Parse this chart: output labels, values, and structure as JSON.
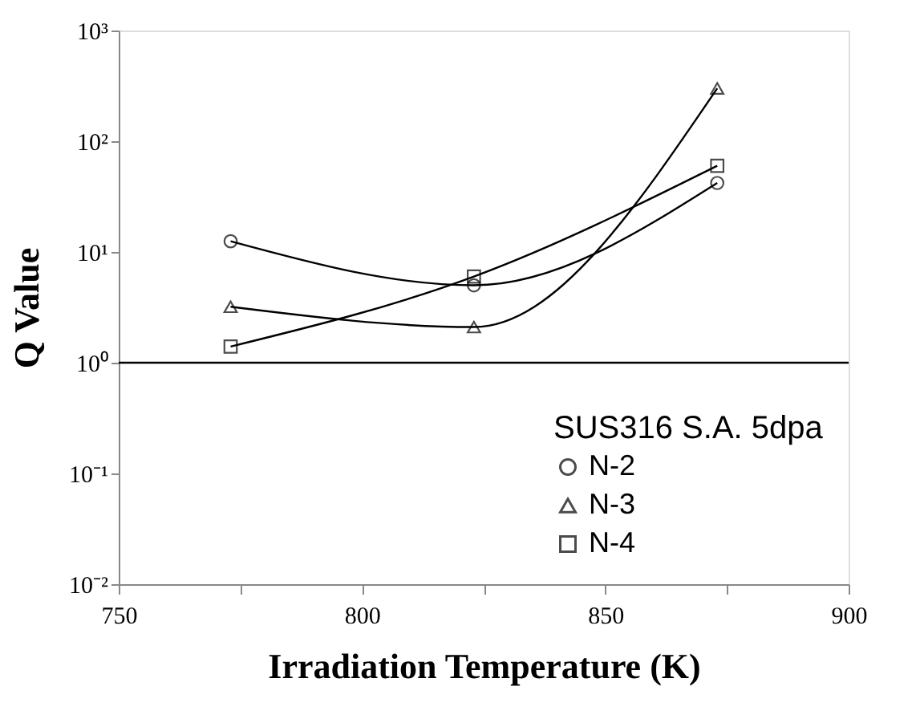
{
  "chart_data": {
    "type": "line",
    "xlabel": "Irradiation Temperature (K)",
    "ylabel": "Q Value",
    "legend_title": "SUS316 S.A. 5dpa",
    "legend": "bottom right",
    "log": "y",
    "grid": false,
    "x": [
      773,
      823,
      873
    ],
    "series": [
      {
        "name": "N-2",
        "color": "#000000",
        "marker": "circle",
        "values": [
          12.5,
          5,
          42
        ]
      },
      {
        "name": "N-3",
        "color": "#000000",
        "marker": "triangle",
        "values": [
          3.2,
          2.1,
          300
        ]
      },
      {
        "name": "N-4",
        "color": "#000000",
        "marker": "square",
        "values": [
          1.4,
          6,
          60
        ]
      }
    ],
    "xlim": [
      750,
      900
    ],
    "xticks": [
      750,
      {
        "value": 775,
        "label": null
      },
      800,
      {
        "value": 825,
        "label": null
      },
      850,
      {
        "value": 875,
        "label": null
      },
      900
    ],
    "ylim": [
      0.01,
      1000
    ],
    "yticks": [
      {
        "value": 0.01,
        "label": "10⁻²"
      },
      {
        "value": 0.1,
        "label": "10⁻¹"
      },
      {
        "value": 1,
        "label": "10⁰"
      },
      {
        "value": 10,
        "label": "10¹"
      },
      {
        "value": 100,
        "label": "10²"
      },
      {
        "value": 1000,
        "label": "10³"
      }
    ],
    "ref_lines": [
      {
        "axis": "y",
        "value": 1,
        "color": "#000000",
        "line_style": "solid"
      }
    ]
  }
}
